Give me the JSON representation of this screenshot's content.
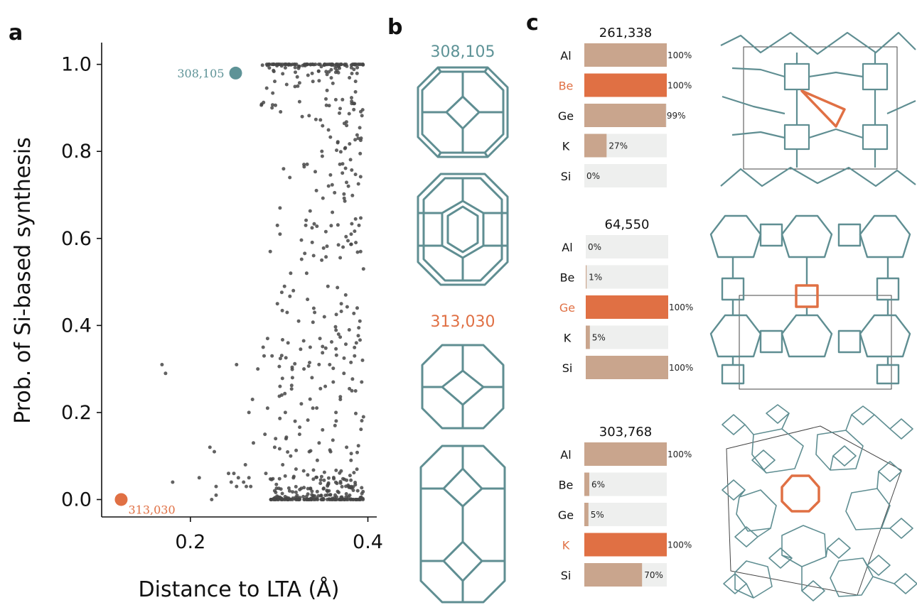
{
  "colors": {
    "teal": "#5e9397",
    "orange": "#e07044",
    "tan": "#c9a58d",
    "track": "#eeefee",
    "frame": "#5f8e92",
    "points": "#474747"
  },
  "panels": {
    "a": "a",
    "b": "b",
    "c": "c"
  },
  "chart_data": [
    {
      "type": "scatter",
      "xlabel": "Distance to LTA (Å)",
      "ylabel": "Prob. of Si-based synthesis",
      "xlim": [
        0.1,
        0.41
      ],
      "ylim": [
        -0.04,
        1.05
      ],
      "xticks": [
        0.2,
        0.4
      ],
      "xtick_labels": [
        "0.2",
        "0.4"
      ],
      "yticks": [
        0.0,
        0.2,
        0.4,
        0.6,
        0.8,
        1.0
      ],
      "ytick_labels": [
        "0.0",
        "0.2",
        "0.4",
        "0.6",
        "0.8",
        "1.0"
      ],
      "highlight_points": [
        {
          "label": "308,105",
          "x": 0.251,
          "y": 0.98,
          "color": "#5e9397"
        },
        {
          "label": "313,030",
          "x": 0.122,
          "y": 0.0,
          "color": "#e07044"
        }
      ],
      "points": [
        [
          0.168,
          0.31
        ],
        [
          0.172,
          0.29
        ],
        [
          0.18,
          0.04
        ],
        [
          0.21,
          0.05
        ],
        [
          0.222,
          0.12
        ],
        [
          0.224,
          0.0
        ],
        [
          0.227,
          0.11
        ],
        [
          0.229,
          0.03
        ],
        [
          0.229,
          0.01
        ],
        [
          0.243,
          0.06
        ],
        [
          0.246,
          0.04
        ],
        [
          0.249,
          0.06
        ],
        [
          0.252,
          0.03
        ],
        [
          0.254,
          0.05
        ],
        [
          0.26,
          0.04
        ],
        [
          0.263,
          0.03
        ],
        [
          0.266,
          0.05
        ],
        [
          0.268,
          0.03
        ],
        [
          0.252,
          0.31
        ],
        [
          0.262,
          0.08
        ],
        [
          0.266,
          0.2
        ],
        [
          0.27,
          0.23
        ],
        [
          0.271,
          0.13
        ],
        [
          0.276,
          0.3
        ],
        [
          0.282,
          0.35
        ],
        [
          0.283,
          0.33
        ],
        [
          0.284,
          0.15
        ],
        [
          0.285,
          0.06
        ],
        [
          0.287,
          0.21
        ],
        [
          0.287,
          0.37
        ],
        [
          0.29,
          0.57
        ],
        [
          0.292,
          0.9
        ],
        [
          0.296,
          0.14
        ],
        [
          0.298,
          0.63
        ],
        [
          0.301,
          0.67
        ],
        [
          0.301,
          0.61
        ],
        [
          0.303,
          0.24
        ],
        [
          0.305,
          0.76
        ],
        [
          0.306,
          0.49
        ],
        [
          0.309,
          0.43
        ],
        [
          0.312,
          0.74
        ],
        [
          0.313,
          0.52
        ],
        [
          0.315,
          0.28
        ],
        [
          0.318,
          0.18
        ],
        [
          0.321,
          0.95
        ],
        [
          0.323,
          0.15
        ],
        [
          0.326,
          0.88
        ],
        [
          0.328,
          0.77
        ],
        [
          0.33,
          0.63
        ],
        [
          0.332,
          0.46
        ],
        [
          0.335,
          0.35
        ],
        [
          0.338,
          0.21
        ],
        [
          0.342,
          0.71
        ],
        [
          0.345,
          0.13
        ],
        [
          0.348,
          0.55
        ],
        [
          0.351,
          0.42
        ],
        [
          0.354,
          0.94
        ],
        [
          0.357,
          0.31
        ],
        [
          0.36,
          0.66
        ],
        [
          0.363,
          0.17
        ],
        [
          0.366,
          0.82
        ],
        [
          0.369,
          0.23
        ],
        [
          0.372,
          0.58
        ],
        [
          0.375,
          0.47
        ],
        [
          0.378,
          0.72
        ],
        [
          0.381,
          0.09
        ],
        [
          0.384,
          0.91
        ],
        [
          0.387,
          0.36
        ],
        [
          0.39,
          0.63
        ],
        [
          0.393,
          0.27
        ],
        [
          0.395,
          0.53
        ],
        [
          0.395,
          0.19
        ],
        [
          0.394,
          0.32
        ],
        [
          0.391,
          0.41
        ],
        [
          0.388,
          0.44
        ],
        [
          0.385,
          0.33
        ],
        [
          0.382,
          0.25
        ],
        [
          0.379,
          0.39
        ],
        [
          0.376,
          0.12
        ],
        [
          0.373,
          0.29
        ],
        [
          0.37,
          0.45
        ],
        [
          0.367,
          0.38
        ],
        [
          0.364,
          0.2
        ],
        [
          0.361,
          0.27
        ],
        [
          0.358,
          0.11
        ],
        [
          0.355,
          0.49
        ],
        [
          0.352,
          0.26
        ],
        [
          0.349,
          0.16
        ],
        [
          0.346,
          0.37
        ],
        [
          0.343,
          0.09
        ],
        [
          0.34,
          0.43
        ],
        [
          0.337,
          0.28
        ],
        [
          0.334,
          0.11
        ],
        [
          0.331,
          0.52
        ],
        [
          0.328,
          0.3
        ],
        [
          0.325,
          0.22
        ],
        [
          0.322,
          0.41
        ],
        [
          0.319,
          0.07
        ],
        [
          0.316,
          0.48
        ],
        [
          0.313,
          0.1
        ],
        [
          0.31,
          0.36
        ],
        [
          0.307,
          0.2
        ],
        [
          0.304,
          0.08
        ],
        [
          0.301,
          0.26
        ],
        [
          0.298,
          0.45
        ],
        [
          0.295,
          0.12
        ],
        [
          0.292,
          0.33
        ]
      ]
    },
    {
      "type": "bar",
      "title": "261,338",
      "categories": [
        "Al",
        "Be",
        "Ge",
        "K",
        "Si"
      ],
      "values": [
        100,
        100,
        99,
        27,
        0
      ],
      "labels": [
        "100%",
        "100%",
        "99%",
        "27%",
        "0%"
      ],
      "highlight": "Be"
    },
    {
      "type": "bar",
      "title": "64,550",
      "categories": [
        "Al",
        "Be",
        "Ge",
        "K",
        "Si"
      ],
      "values": [
        0,
        1,
        100,
        5,
        100
      ],
      "labels": [
        "0%",
        "1%",
        "100%",
        "5%",
        "100%"
      ],
      "highlight": "Ge"
    },
    {
      "type": "bar",
      "title": "303,768",
      "categories": [
        "Al",
        "Be",
        "Ge",
        "K",
        "Si"
      ],
      "values": [
        100,
        6,
        5,
        100,
        70
      ],
      "labels": [
        "100%",
        "6%",
        "5%",
        "100%",
        "70%"
      ],
      "highlight": "K"
    }
  ],
  "structures_b": {
    "top_label": "308,105",
    "bottom_label": "313,030"
  }
}
